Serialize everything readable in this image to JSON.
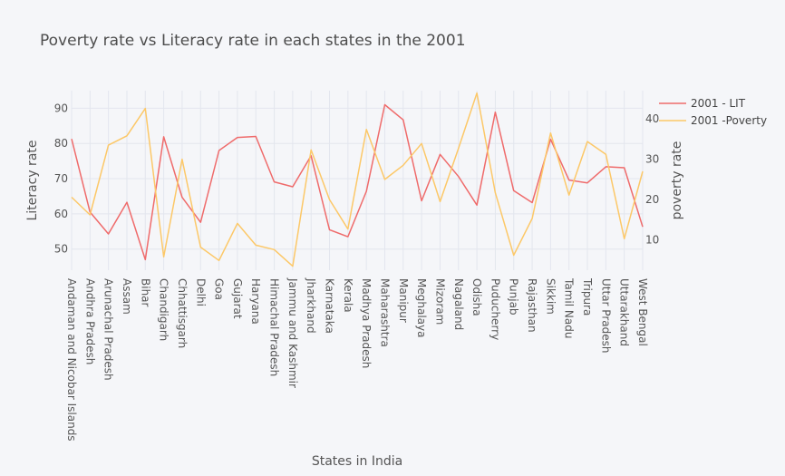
{
  "chart_data": {
    "type": "line",
    "title": "Poverty rate vs Literacy rate in each states in the 2001",
    "xlabel": "States in India",
    "ylabel_left": "Literacy rate",
    "ylabel_right": "poverty rate",
    "ylim_left": [
      44,
      95
    ],
    "ylim_right": [
      2.5,
      47
    ],
    "yticks_left": [
      50,
      60,
      70,
      80,
      90
    ],
    "yticks_right": [
      10,
      20,
      30,
      40
    ],
    "grid": true,
    "legend_position": "top-right",
    "categories": [
      "Andaman and Nicobar Islands",
      "Andhra Pradesh",
      "Arunachal Pradesh",
      "Assam",
      "Bihar",
      "Chandigarh",
      "Chhattisgarh",
      "Delhi",
      "Goa",
      "Gujarat",
      "Haryana",
      "Himachal Pradesh",
      "Jammu and Kashmir",
      "Jharkhand",
      "Karnataka",
      "Kerala",
      "Madhya Pradesh",
      "Maharashtra",
      "Manipur",
      "Meghalaya",
      "Mizoram",
      "Nagaland",
      "Odisha",
      "Puducherry",
      "Punjab",
      "Rajasthan",
      "Sikkim",
      "Tamil Nadu",
      "Tripura",
      "Uttar Pradesh",
      "Uttarakhand",
      "West Bengal"
    ],
    "series": [
      {
        "name": "2001 - LIT",
        "axis": "left",
        "color": "#ef6b6b",
        "values": [
          81.3,
          60.5,
          54.3,
          63.3,
          47.0,
          81.9,
          64.7,
          57.6,
          78.0,
          81.7,
          82.0,
          69.1,
          67.7,
          76.5,
          55.5,
          53.5,
          66.4,
          91.0,
          86.7,
          63.7,
          76.9,
          70.6,
          62.5,
          88.9,
          66.6,
          63.2,
          81.2,
          69.6,
          68.8,
          73.4,
          73.1,
          56.3
        ]
      },
      {
        "name": "2001 -Poverty",
        "axis": "right",
        "color": "#fcc868",
        "values": [
          20.6,
          16.2,
          33.5,
          35.8,
          42.6,
          5.8,
          30.0,
          8.2,
          4.9,
          14.1,
          8.7,
          7.6,
          3.5,
          32.3,
          20.0,
          12.7,
          37.4,
          25.0,
          28.5,
          33.9,
          19.5,
          32.7,
          46.4,
          21.7,
          6.2,
          15.3,
          36.5,
          21.1,
          34.4,
          31.2,
          10.3,
          27.0
        ]
      }
    ]
  }
}
